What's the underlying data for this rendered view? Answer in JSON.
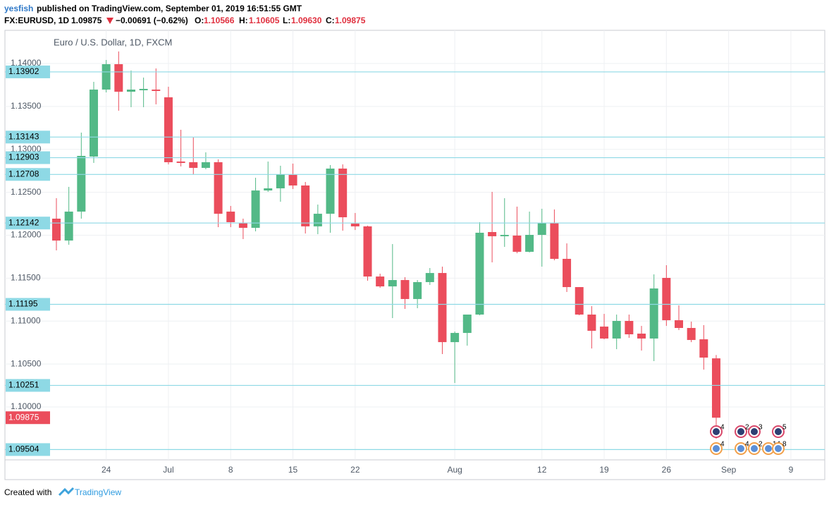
{
  "header": {
    "author": "yesfish",
    "published": "published on TradingView.com, September 01, 2019 16:51:55 GMT",
    "symbol": "FX:EURUSD, 1D",
    "last": "1.09875",
    "change": "−0.00691 (−0.62%)",
    "ohlc": [
      {
        "key": "O:",
        "value": "1.10566"
      },
      {
        "key": "H:",
        "value": "1.10605"
      },
      {
        "key": "L:",
        "value": "1.09630"
      },
      {
        "key": "C:",
        "value": "1.09875"
      }
    ]
  },
  "chart_data": {
    "type": "candlestick",
    "legend": "Euro / U.S. Dollar, 1D, FXCM",
    "up_color": "#53b987",
    "down_color": "#eb4d5c",
    "level_color": "#8ed9e5",
    "grid": true,
    "categories": [
      null,
      null,
      null,
      null,
      "24",
      null,
      null,
      null,
      null,
      "Jul",
      null,
      null,
      null,
      null,
      "8",
      null,
      null,
      null,
      null,
      "15",
      null,
      null,
      null,
      null,
      "22",
      null,
      null,
      null,
      null,
      null,
      null,
      null,
      "Aug",
      null,
      null,
      null,
      null,
      null,
      null,
      "12",
      null,
      null,
      null,
      null,
      "19",
      null,
      null,
      null,
      null,
      "26",
      null,
      null,
      null,
      null,
      "Sep",
      null,
      null,
      null,
      null,
      "9"
    ],
    "open": [
      1.12193,
      1.11938,
      1.12275,
      1.12916,
      1.13696,
      1.13992,
      1.13671,
      1.13688,
      1.13696,
      1.13606,
      1.12858,
      1.1285,
      1.12784,
      1.1285,
      1.12275,
      1.12144,
      1.12086,
      1.12521,
      1.12546,
      1.12702,
      1.12579,
      1.12103,
      1.1225,
      1.12776,
      1.12135,
      1.12103,
      1.11519,
      1.11404,
      1.11478,
      1.11257,
      1.11454,
      1.1156,
      1.10755,
      1.10862,
      1.11076,
      1.12037,
      1.11988,
      1.11996,
      1.11807,
      1.12004,
      1.12144,
      1.11725,
      1.11396,
      1.11076,
      1.10936,
      1.10797,
      1.11002,
      1.10854,
      1.10797,
      1.11503,
      1.1101,
      1.1092,
      1.10788,
      1.10566,
      null,
      null,
      null,
      null,
      null,
      null
    ],
    "high": [
      1.12431,
      1.12563,
      1.13195,
      1.13786,
      1.14041,
      1.1414,
      1.13918,
      1.13836,
      1.13942,
      1.13729,
      1.13228,
      1.13138,
      1.12965,
      1.12883,
      1.12341,
      1.12193,
      1.12669,
      1.12858,
      1.12809,
      1.12834,
      1.1262,
      1.12357,
      1.12817,
      1.12825,
      1.12259,
      1.12111,
      1.11552,
      1.11897,
      1.11511,
      1.11478,
      1.11618,
      1.11634,
      1.10879,
      1.11076,
      1.12152,
      1.12505,
      1.12431,
      1.12333,
      1.12275,
      1.12308,
      1.123,
      1.11905,
      1.11396,
      1.11174,
      1.11084,
      1.11076,
      1.11076,
      1.10944,
      1.11544,
      1.11651,
      1.11183,
      1.10994,
      1.10953,
      1.10605,
      null,
      null,
      null,
      null,
      null,
      null
    ],
    "low": [
      1.11823,
      1.11889,
      1.12193,
      1.12842,
      1.13663,
      1.1345,
      1.13491,
      1.13491,
      1.13524,
      1.12825,
      1.12801,
      1.1271,
      1.12768,
      1.12094,
      1.12094,
      1.11955,
      1.12045,
      1.12505,
      1.1239,
      1.12538,
      1.1202,
      1.12012,
      1.12029,
      1.12053,
      1.12061,
      1.1147,
      1.11388,
      1.11035,
      1.11142,
      1.1115,
      1.11421,
      1.10616,
      1.10279,
      1.10714,
      1.11068,
      1.11684,
      1.11864,
      1.1179,
      1.11799,
      1.11634,
      1.11708,
      1.11339,
      1.11068,
      1.10681,
      1.10788,
      1.10673,
      1.10805,
      1.10657,
      1.10534,
      1.10944,
      1.10895,
      1.10755,
      1.10435,
      1.0963,
      null,
      null,
      null,
      null,
      null,
      null
    ],
    "close": [
      1.11938,
      1.12275,
      1.12924,
      1.13696,
      1.13992,
      1.13671,
      1.13696,
      1.13704,
      1.1368,
      1.1285,
      1.12842,
      1.12784,
      1.1285,
      1.1225,
      1.12152,
      1.12086,
      1.12521,
      1.12546,
      1.1271,
      1.12579,
      1.12103,
      1.1225,
      1.12776,
      1.12209,
      1.12103,
      1.11519,
      1.11404,
      1.11478,
      1.11257,
      1.11454,
      1.1156,
      1.10755,
      1.10862,
      1.11076,
      1.12029,
      1.11988,
      1.12004,
      1.11807,
      1.12004,
      1.12144,
      1.11725,
      1.11396,
      1.11076,
      1.10887,
      1.10797,
      1.11002,
      1.10846,
      1.10797,
      1.1138,
      1.1101,
      1.1092,
      1.1078,
      1.10575,
      1.09875,
      null,
      null,
      null,
      null,
      null,
      null
    ],
    "ylim": [
      1.09384,
      1.14386
    ],
    "yticks": [
      {
        "value": 1.14,
        "label": "1.14000"
      },
      {
        "value": 1.135,
        "label": "1.13500"
      },
      {
        "value": 1.13,
        "label": "1.13000"
      },
      {
        "value": 1.125,
        "label": "1.12500"
      },
      {
        "value": 1.12,
        "label": "1.12000"
      },
      {
        "value": 1.115,
        "label": "1.11500"
      },
      {
        "value": 1.11,
        "label": "1.11000"
      },
      {
        "value": 1.105,
        "label": "1.10500"
      },
      {
        "value": 1.1,
        "label": "1.10000"
      }
    ],
    "levels": [
      1.13902,
      1.13143,
      1.12903,
      1.12708,
      1.12142,
      1.11195,
      1.10251,
      1.09504
    ],
    "last_price": 1.09875,
    "events": {
      "top": [
        4,
        2,
        3,
        5
      ],
      "bottom": [
        4,
        4,
        2,
        14,
        8
      ]
    }
  },
  "footer": {
    "text": "Created with",
    "brand": "TradingView"
  }
}
